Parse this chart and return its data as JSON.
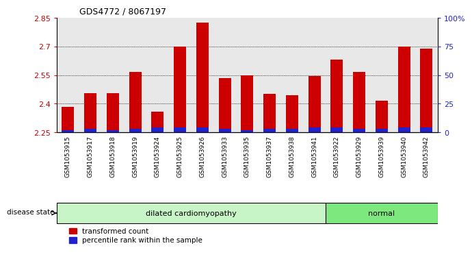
{
  "title": "GDS4772 / 8067197",
  "samples": [
    "GSM1053915",
    "GSM1053917",
    "GSM1053918",
    "GSM1053919",
    "GSM1053924",
    "GSM1053925",
    "GSM1053926",
    "GSM1053933",
    "GSM1053935",
    "GSM1053937",
    "GSM1053938",
    "GSM1053941",
    "GSM1053922",
    "GSM1053929",
    "GSM1053939",
    "GSM1053940",
    "GSM1053942"
  ],
  "red_values": [
    2.385,
    2.455,
    2.455,
    2.565,
    2.36,
    2.7,
    2.825,
    2.535,
    2.55,
    2.45,
    2.445,
    2.545,
    2.63,
    2.565,
    2.415,
    2.7,
    2.69
  ],
  "blue_pct": [
    2,
    3,
    2,
    3,
    4,
    4,
    4,
    3,
    2,
    3,
    3,
    4,
    4,
    3,
    3,
    4,
    4
  ],
  "disease_groups": [
    {
      "label": "dilated cardiomyopathy",
      "start": 0,
      "end": 11,
      "color": "#c8f5c8"
    },
    {
      "label": "normal",
      "start": 12,
      "end": 16,
      "color": "#7de87d"
    }
  ],
  "ylim_left": [
    2.25,
    2.85
  ],
  "ylim_right": [
    0,
    100
  ],
  "yticks_left": [
    2.25,
    2.4,
    2.55,
    2.7,
    2.85
  ],
  "yticks_right": [
    0,
    25,
    50,
    75,
    100
  ],
  "ytick_labels_right": [
    "0",
    "25",
    "50",
    "75",
    "100%"
  ],
  "bar_width": 0.55,
  "bar_color_red": "#cc0000",
  "bar_color_blue": "#2222cc",
  "background_plot": "#e8e8e8",
  "left_tick_color": "#cc0000",
  "right_tick_color": "#2222cc",
  "legend_red_label": "transformed count",
  "legend_blue_label": "percentile rank within the sample",
  "disease_state_label": "disease state"
}
